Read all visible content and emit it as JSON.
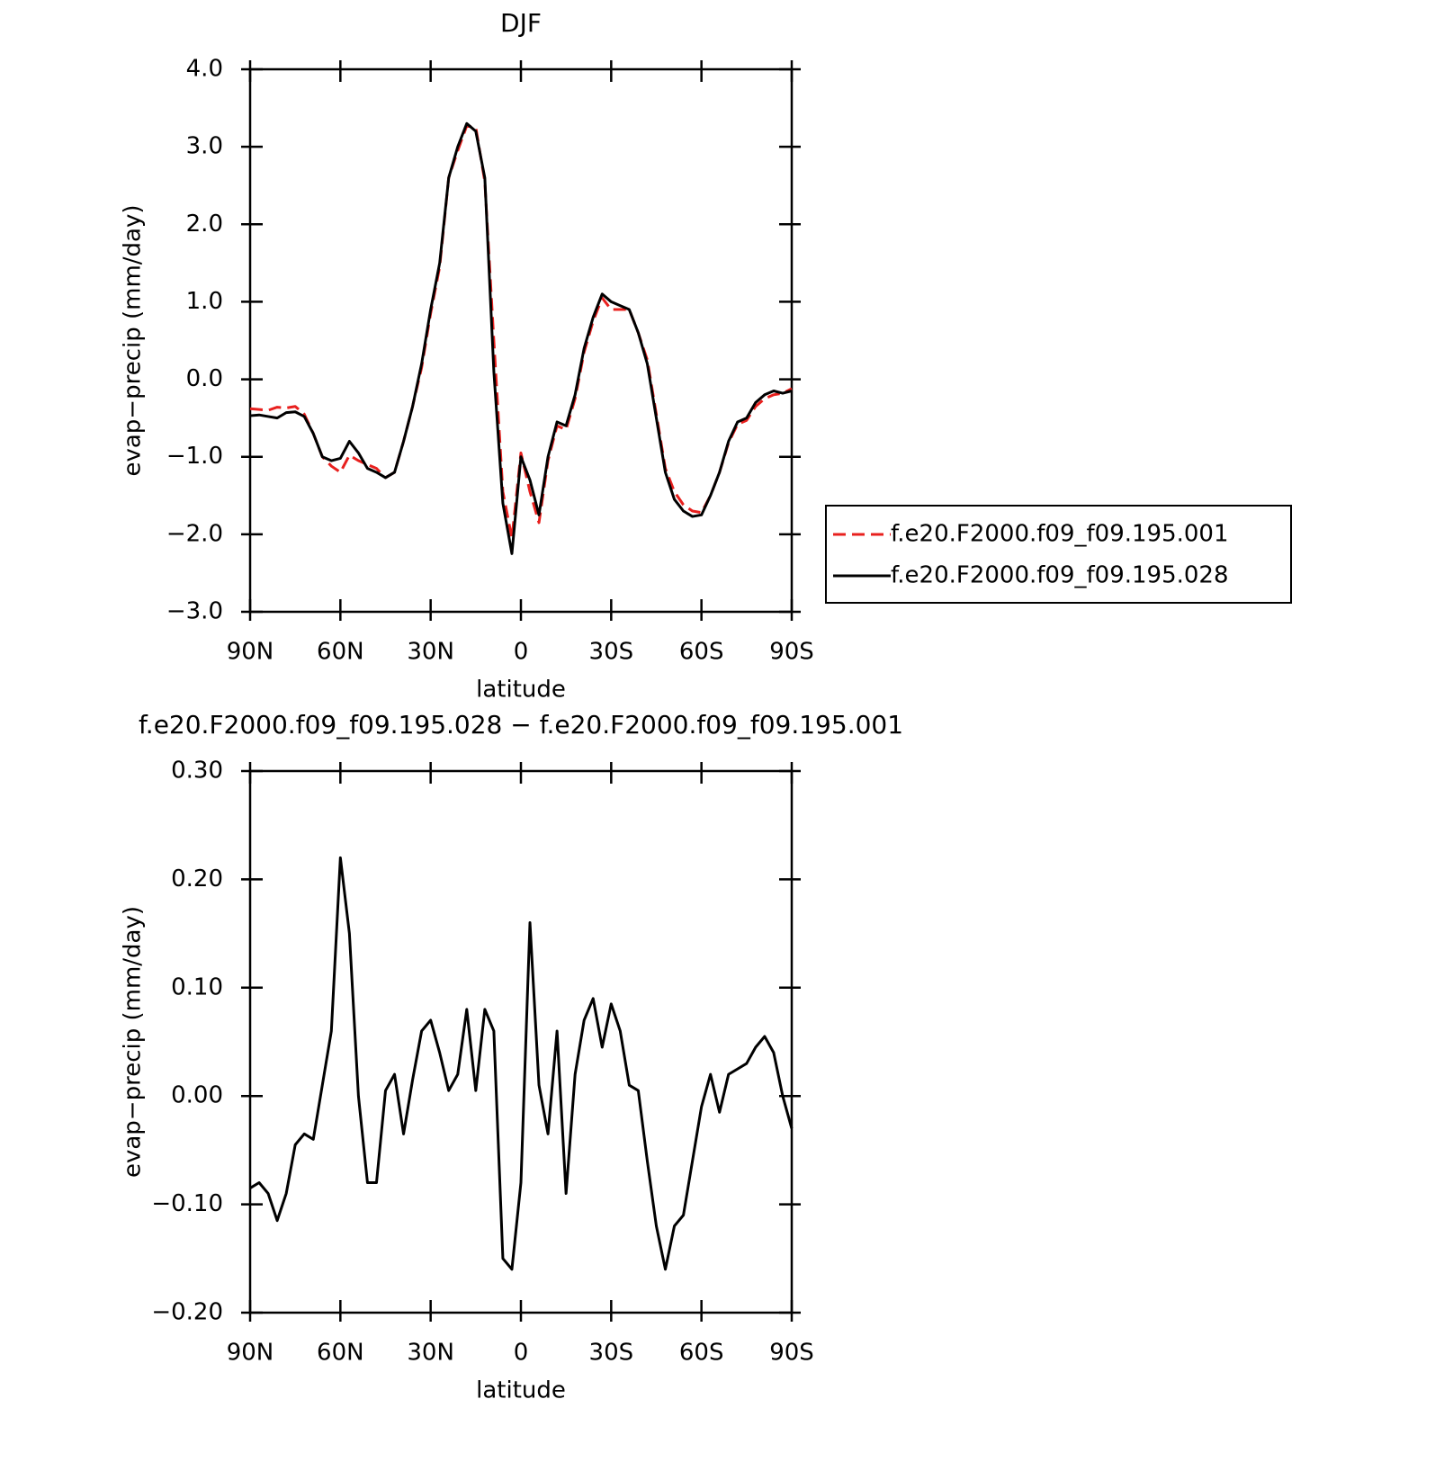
{
  "chart_data": [
    {
      "type": "line",
      "title": "DJF",
      "xlabel": "latitude",
      "ylabel": "evap−precip (mm/day)",
      "xlim": [
        90,
        -90
      ],
      "xticks": [
        {
          "value": 90,
          "label": "90N"
        },
        {
          "value": 60,
          "label": "60N"
        },
        {
          "value": 30,
          "label": "30N"
        },
        0,
        {
          "value": -30,
          "label": "30S"
        },
        {
          "value": -60,
          "label": "60S"
        },
        {
          "value": -90,
          "label": "90S"
        }
      ],
      "ylim": [
        -3,
        4
      ],
      "yticks": [
        {
          "value": -3,
          "label": "−3.0"
        },
        {
          "value": -2,
          "label": "−2.0"
        },
        {
          "value": -1,
          "label": "−1.0"
        },
        {
          "value": 0,
          "label": "0.0"
        },
        {
          "value": 1,
          "label": "1.0"
        },
        {
          "value": 2,
          "label": "2.0"
        },
        {
          "value": 3,
          "label": "3.0"
        },
        {
          "value": 4,
          "label": "4.0"
        }
      ],
      "legend_position": "right",
      "x": [
        90,
        87,
        84,
        81,
        78,
        75,
        72,
        69,
        66,
        63,
        60,
        57,
        54,
        51,
        48,
        45,
        42,
        39,
        36,
        33,
        30,
        27,
        24,
        21,
        18,
        15,
        12,
        9,
        6,
        3,
        0,
        -3,
        -6,
        -9,
        -12,
        -15,
        -18,
        -21,
        -24,
        -27,
        -30,
        -33,
        -36,
        -39,
        -42,
        -45,
        -48,
        -51,
        -54,
        -57,
        -60,
        -63,
        -66,
        -69,
        -72,
        -75,
        -78,
        -81,
        -84,
        -87,
        -90
      ],
      "series": [
        {
          "name": "f.e20.F2000.f09_f09.195.001",
          "color": "#e8201e",
          "line_style": "dashed",
          "values": [
            -0.38,
            -0.39,
            -0.4,
            -0.36,
            -0.37,
            -0.35,
            -0.45,
            -0.7,
            -1.0,
            -1.12,
            -1.2,
            -0.98,
            -1.05,
            -1.1,
            -1.15,
            -1.27,
            -1.2,
            -0.8,
            -0.35,
            0.15,
            0.85,
            1.45,
            2.6,
            2.95,
            3.27,
            3.25,
            2.55,
            0.5,
            -1.45,
            -2.05,
            -0.95,
            -1.45,
            -1.85,
            -1.05,
            -0.6,
            -0.65,
            -0.25,
            0.35,
            0.75,
            1.05,
            0.9,
            0.9,
            0.9,
            0.6,
            0.25,
            -0.45,
            -1.15,
            -1.45,
            -1.62,
            -1.7,
            -1.72,
            -1.5,
            -1.2,
            -0.82,
            -0.58,
            -0.53,
            -0.35,
            -0.25,
            -0.2,
            -0.18,
            -0.12
          ]
        },
        {
          "name": "f.e20.F2000.f09_f09.195.028",
          "color": "#000000",
          "line_style": "solid",
          "values": [
            -0.47,
            -0.46,
            -0.48,
            -0.5,
            -0.43,
            -0.42,
            -0.48,
            -0.7,
            -1.0,
            -1.05,
            -1.02,
            -0.8,
            -0.95,
            -1.15,
            -1.2,
            -1.27,
            -1.2,
            -0.8,
            -0.35,
            0.2,
            0.9,
            1.5,
            2.6,
            3.0,
            3.3,
            3.2,
            2.6,
            0.1,
            -1.6,
            -2.25,
            -1.0,
            -1.3,
            -1.75,
            -1.0,
            -0.55,
            -0.6,
            -0.2,
            0.4,
            0.8,
            1.1,
            1.0,
            0.95,
            0.9,
            0.6,
            0.2,
            -0.5,
            -1.2,
            -1.55,
            -1.7,
            -1.77,
            -1.75,
            -1.5,
            -1.2,
            -0.8,
            -0.55,
            -0.5,
            -0.3,
            -0.2,
            -0.15,
            -0.18,
            -0.15
          ]
        }
      ]
    },
    {
      "type": "line",
      "title": "f.e20.F2000.f09_f09.195.028 − f.e20.F2000.f09_f09.195.001",
      "xlabel": "latitude",
      "ylabel": "evap−precip (mm/day)",
      "xlim": [
        90,
        -90
      ],
      "xticks": [
        {
          "value": 90,
          "label": "90N"
        },
        {
          "value": 60,
          "label": "60N"
        },
        {
          "value": 30,
          "label": "30N"
        },
        0,
        {
          "value": -30,
          "label": "30S"
        },
        {
          "value": -60,
          "label": "60S"
        },
        {
          "value": -90,
          "label": "90S"
        }
      ],
      "ylim": [
        -0.2,
        0.3
      ],
      "yticks": [
        {
          "value": -0.2,
          "label": "−0.20"
        },
        {
          "value": -0.1,
          "label": "−0.10"
        },
        {
          "value": 0,
          "label": "0.00"
        },
        {
          "value": 0.1,
          "label": "0.10"
        },
        {
          "value": 0.2,
          "label": "0.20"
        },
        {
          "value": 0.3,
          "label": "0.30"
        }
      ],
      "x": [
        90,
        87,
        84,
        81,
        78,
        75,
        72,
        69,
        66,
        63,
        60,
        57,
        54,
        51,
        48,
        45,
        42,
        39,
        36,
        33,
        30,
        27,
        24,
        21,
        18,
        15,
        12,
        9,
        6,
        3,
        0,
        -3,
        -6,
        -9,
        -12,
        -15,
        -18,
        -21,
        -24,
        -27,
        -30,
        -33,
        -36,
        -39,
        -42,
        -45,
        -48,
        -51,
        -54,
        -57,
        -60,
        -63,
        -66,
        -69,
        -72,
        -75,
        -78,
        -81,
        -84,
        -87,
        -90
      ],
      "series": [
        {
          "color": "#000000",
          "line_style": "solid",
          "values": [
            -0.085,
            -0.08,
            -0.09,
            -0.115,
            -0.09,
            -0.045,
            -0.035,
            -0.04,
            0.01,
            0.06,
            0.22,
            0.15,
            0.0,
            -0.08,
            -0.08,
            0.005,
            0.02,
            -0.035,
            0.015,
            0.06,
            0.07,
            0.04,
            0.005,
            0.02,
            0.08,
            0.005,
            0.08,
            0.06,
            -0.15,
            -0.16,
            -0.08,
            0.16,
            0.01,
            -0.035,
            0.06,
            -0.09,
            0.02,
            0.07,
            0.09,
            0.045,
            0.085,
            0.06,
            0.01,
            0.005,
            -0.06,
            -0.12,
            -0.16,
            -0.12,
            -0.11,
            -0.06,
            -0.01,
            0.02,
            -0.015,
            0.02,
            0.025,
            0.03,
            0.045,
            0.055,
            0.04,
            0.0,
            -0.03
          ]
        }
      ]
    }
  ]
}
